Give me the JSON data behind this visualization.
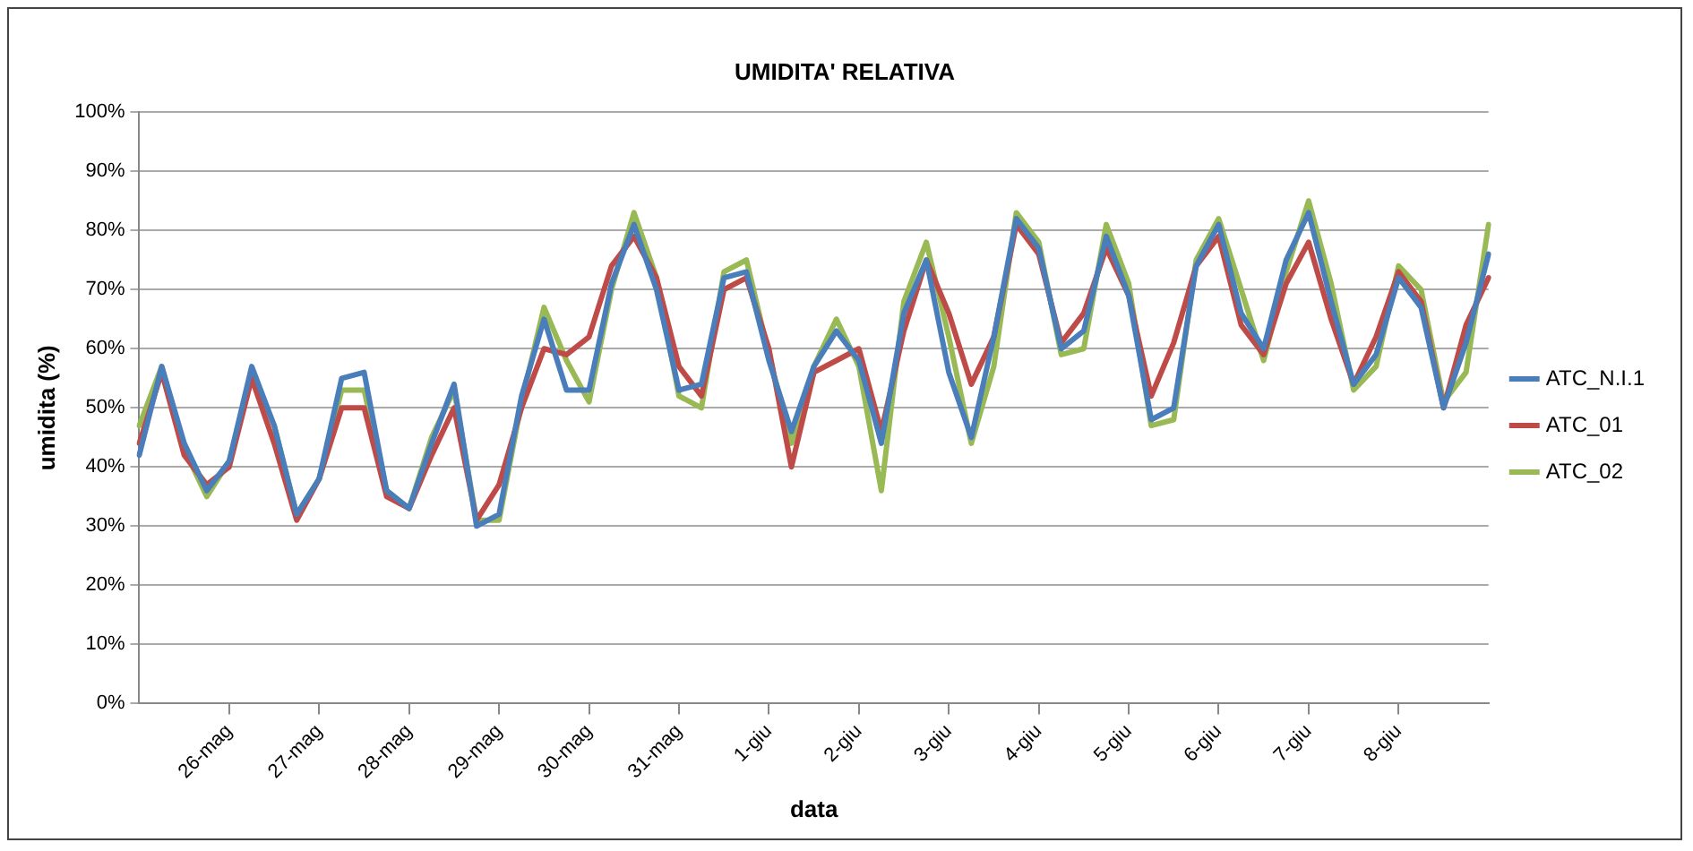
{
  "chart_data": {
    "type": "line",
    "title": "UMIDITA' RELATIVA",
    "xlabel": "data",
    "ylabel": "umidita (%)",
    "categories": [
      null,
      null,
      null,
      null,
      "26-mag",
      null,
      null,
      null,
      "27-mag",
      null,
      null,
      null,
      "28-mag",
      null,
      null,
      null,
      "29-mag",
      null,
      null,
      null,
      "30-mag",
      null,
      null,
      null,
      "31-mag",
      null,
      null,
      null,
      "1-giu",
      null,
      null,
      null,
      "2-giu",
      null,
      null,
      null,
      "3-giu",
      null,
      null,
      null,
      "4-giu",
      null,
      null,
      null,
      "5-giu",
      null,
      null,
      null,
      "6-giu",
      null,
      null,
      null,
      "7-giu",
      null,
      null,
      null,
      "8-giu",
      null,
      null,
      null,
      null
    ],
    "series": [
      {
        "name": "ATC_N.I.1",
        "color": "#4a7ebb",
        "values": [
          42,
          57,
          44,
          36,
          41,
          57,
          47,
          32,
          38,
          55,
          56,
          36,
          33,
          44,
          54,
          30,
          32,
          52,
          65,
          53,
          53,
          71,
          81,
          70,
          53,
          54,
          72,
          73,
          58,
          46,
          57,
          63,
          58,
          44,
          66,
          75,
          56,
          45,
          62,
          82,
          77,
          60,
          63,
          79,
          69,
          48,
          50,
          74,
          81,
          66,
          60,
          75,
          83,
          68,
          54,
          59,
          72,
          67,
          50,
          61,
          76
        ]
      },
      {
        "name": "ATC_01",
        "color": "#be4b48",
        "values": [
          44,
          56,
          42,
          37,
          40,
          55,
          44,
          31,
          38,
          50,
          50,
          35,
          33,
          42,
          50,
          31,
          37,
          50,
          60,
          59,
          62,
          74,
          79,
          72,
          57,
          52,
          70,
          72,
          60,
          40,
          56,
          58,
          60,
          46,
          63,
          75,
          66,
          54,
          62,
          81,
          76,
          61,
          66,
          77,
          69,
          52,
          61,
          74,
          79,
          64,
          59,
          71,
          78,
          65,
          54,
          62,
          73,
          68,
          50,
          64,
          72
        ]
      },
      {
        "name": "ATC_02",
        "color": "#98b954",
        "values": [
          47,
          57,
          43,
          35,
          41,
          56,
          47,
          32,
          38,
          53,
          53,
          36,
          33,
          45,
          53,
          31,
          31,
          51,
          67,
          58,
          51,
          70,
          83,
          72,
          52,
          50,
          73,
          75,
          59,
          44,
          57,
          65,
          57,
          36,
          68,
          78,
          62,
          44,
          57,
          83,
          78,
          59,
          60,
          81,
          71,
          47,
          48,
          75,
          82,
          70,
          58,
          73,
          85,
          71,
          53,
          57,
          74,
          70,
          51,
          56,
          81
        ]
      }
    ],
    "ylim": [
      0,
      100
    ],
    "yticks": [
      {
        "value": 0,
        "label": "0%"
      },
      {
        "value": 10,
        "label": "10%"
      },
      {
        "value": 20,
        "label": "20%"
      },
      {
        "value": 30,
        "label": "30%"
      },
      {
        "value": 40,
        "label": "40%"
      },
      {
        "value": 50,
        "label": "50%"
      },
      {
        "value": 60,
        "label": "60%"
      },
      {
        "value": 70,
        "label": "70%"
      },
      {
        "value": 80,
        "label": "80%"
      },
      {
        "value": 90,
        "label": "90%"
      },
      {
        "value": 100,
        "label": "100%"
      }
    ],
    "grid": "y",
    "legend": "right",
    "marker": "none",
    "line_style": "solid"
  }
}
